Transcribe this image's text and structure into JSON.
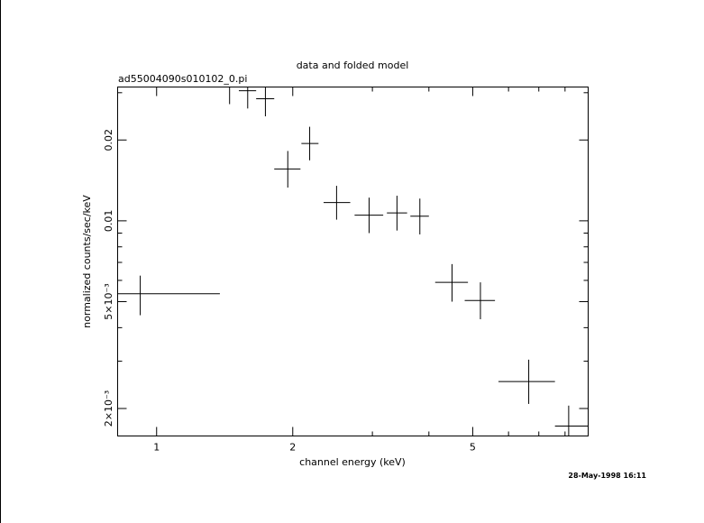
{
  "chart_data": {
    "type": "scatter",
    "title": "data and folded model",
    "subtitle": "ad55004090s010102_0.pi",
    "xlabel": "channel energy (keV)",
    "ylabel": "normalized counts/sec/keV",
    "timestamp": "28-May-1998 16:11",
    "xscale": "log",
    "yscale": "log",
    "xlim": [
      0.82,
      9.0
    ],
    "ylim": [
      0.00158,
      0.0315
    ],
    "grid": false,
    "legend": "none",
    "x_ticks": [
      {
        "value": 1,
        "label": "1"
      },
      {
        "value": 2,
        "label": "2"
      },
      {
        "value": 5,
        "label": "5"
      }
    ],
    "y_ticks": [
      {
        "value": 0.002,
        "label": "2×10⁻³"
      },
      {
        "value": 0.005,
        "label": "5×10⁻³"
      },
      {
        "value": 0.01,
        "label": "0.01"
      },
      {
        "value": 0.02,
        "label": "0.02"
      }
    ],
    "series": [
      {
        "color": "#000000",
        "points": [
          {
            "x": 0.92,
            "xlo": 0.82,
            "xhi": 1.38,
            "y": 0.00535,
            "ylo": 0.00445,
            "yhi": 0.00625
          },
          {
            "x": 1.45,
            "xlo": 1.38,
            "xhi": 1.52,
            "y": 0.0315,
            "ylo": 0.0272,
            "yhi": 0.0375
          },
          {
            "x": 1.59,
            "xlo": 1.52,
            "xhi": 1.66,
            "y": 0.0305,
            "ylo": 0.0262,
            "yhi": 0.0362
          },
          {
            "x": 1.74,
            "xlo": 1.66,
            "xhi": 1.82,
            "y": 0.0285,
            "ylo": 0.0245,
            "yhi": 0.0335
          },
          {
            "x": 1.95,
            "xlo": 1.82,
            "xhi": 2.08,
            "y": 0.0156,
            "ylo": 0.0133,
            "yhi": 0.0182
          },
          {
            "x": 2.18,
            "xlo": 2.09,
            "xhi": 2.28,
            "y": 0.0194,
            "ylo": 0.0168,
            "yhi": 0.0224
          },
          {
            "x": 2.5,
            "xlo": 2.34,
            "xhi": 2.68,
            "y": 0.0117,
            "ylo": 0.0101,
            "yhi": 0.0135
          },
          {
            "x": 2.95,
            "xlo": 2.74,
            "xhi": 3.17,
            "y": 0.0105,
            "ylo": 0.009,
            "yhi": 0.0122
          },
          {
            "x": 3.4,
            "xlo": 3.23,
            "xhi": 3.58,
            "y": 0.0107,
            "ylo": 0.0092,
            "yhi": 0.0124
          },
          {
            "x": 3.82,
            "xlo": 3.64,
            "xhi": 4.0,
            "y": 0.0104,
            "ylo": 0.0089,
            "yhi": 0.0121
          },
          {
            "x": 4.5,
            "xlo": 4.13,
            "xhi": 4.88,
            "y": 0.0059,
            "ylo": 0.005,
            "yhi": 0.0069
          },
          {
            "x": 5.2,
            "xlo": 4.8,
            "xhi": 5.6,
            "y": 0.00505,
            "ylo": 0.0043,
            "yhi": 0.0059
          },
          {
            "x": 6.65,
            "xlo": 5.7,
            "xhi": 7.6,
            "y": 0.00252,
            "ylo": 0.00208,
            "yhi": 0.00304
          },
          {
            "x": 8.15,
            "xlo": 7.6,
            "xhi": 9.0,
            "y": 0.00172,
            "ylo": 0.00145,
            "yhi": 0.00205
          }
        ]
      }
    ]
  }
}
